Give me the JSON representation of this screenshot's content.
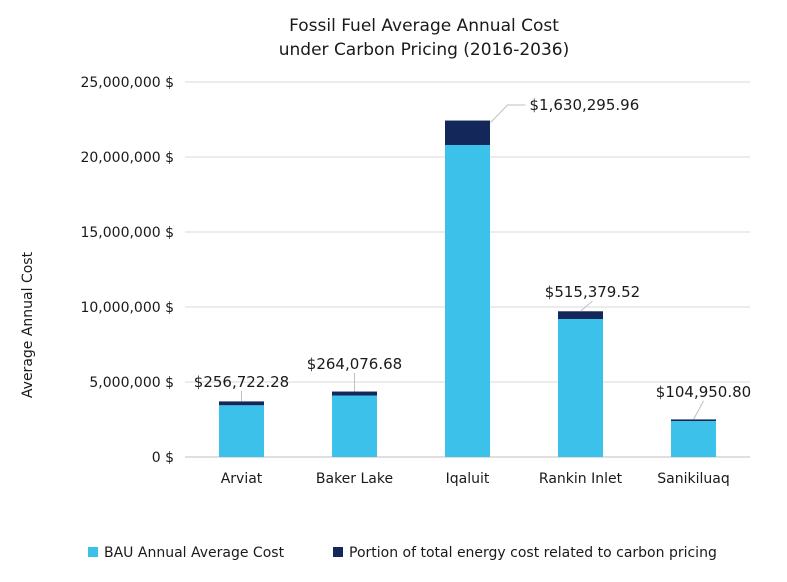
{
  "chart_data": {
    "type": "bar",
    "stacked": true,
    "title_lines": [
      "Fossil Fuel Average Annual Cost",
      "under Carbon Pricing (2016-2036)"
    ],
    "ylabel": "Average Annual Cost",
    "xlabel": "",
    "ylim": [
      0,
      25000000
    ],
    "yticks": [
      0,
      5000000,
      10000000,
      15000000,
      20000000,
      25000000
    ],
    "ytick_labels": [
      "0 $",
      "5,000,000 $",
      "10,000,000 $",
      "15,000,000 $",
      "20,000,000 $",
      "25,000,000 $"
    ],
    "grid": true,
    "legend_position": "bottom",
    "categories": [
      "Arviat",
      "Baker Lake",
      "Iqaluit",
      "Rankin Inlet",
      "Sanikiluaq"
    ],
    "series": [
      {
        "name": "BAU Annual Average Cost",
        "color": "#3bc1ea",
        "values": [
          3450000,
          4100000,
          20800000,
          9200000,
          2400000
        ]
      },
      {
        "name": "Portion of total energy cost related to carbon pricing",
        "color": "#14275a",
        "values": [
          256722.28,
          264076.68,
          1630295.96,
          515379.52,
          104950.8
        ]
      }
    ],
    "data_labels": [
      "$256,722.28",
      "$264,076.68",
      "$1,630,295.96",
      "$515,379.52",
      "$104,950.80"
    ]
  }
}
